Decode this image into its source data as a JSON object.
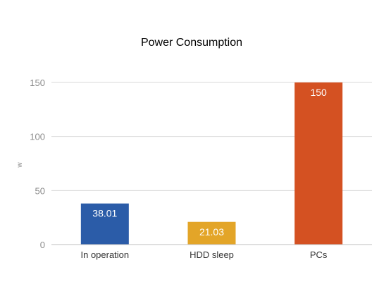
{
  "chart_data": {
    "type": "bar",
    "title": "Power Consumption",
    "xlabel": "",
    "ylabel": "w",
    "categories": [
      "In operation",
      "HDD sleep",
      "PCs"
    ],
    "values": [
      38.01,
      21.03,
      150
    ],
    "value_labels": [
      "38.01",
      "21.03",
      "150"
    ],
    "bar_colors": [
      "#2b5ca8",
      "#e3a528",
      "#d45122"
    ],
    "ylim": [
      0,
      150
    ],
    "yticks": [
      0,
      50,
      100,
      150
    ],
    "grid": true,
    "legend": "none"
  }
}
